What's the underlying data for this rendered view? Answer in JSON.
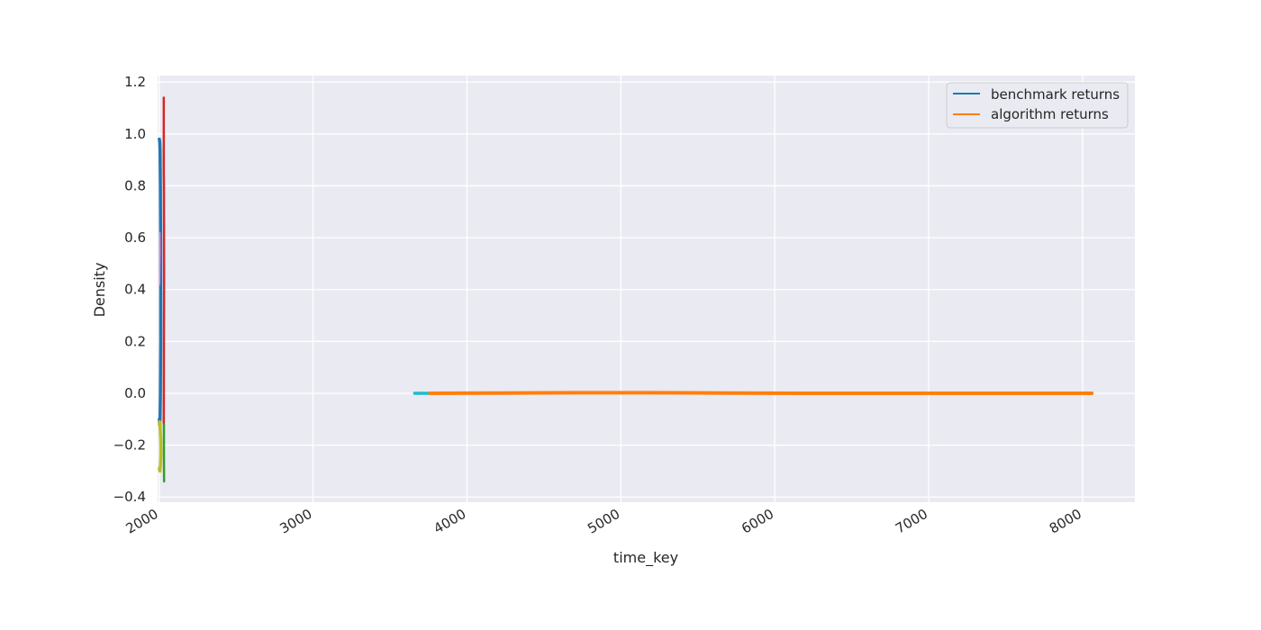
{
  "chart_data": {
    "type": "line",
    "title": "",
    "xlabel": "time_key",
    "ylabel": "Density",
    "xlim": [
      1990,
      8340
    ],
    "ylim": [
      -0.42,
      1.225
    ],
    "xticks": [
      2000,
      3000,
      4000,
      5000,
      6000,
      7000,
      8000
    ],
    "yticks": [
      -0.4,
      -0.2,
      0.0,
      0.2,
      0.4,
      0.6,
      0.8,
      1.0,
      1.2
    ],
    "xtick_labels": [
      "2000",
      "3000",
      "4000",
      "5000",
      "6000",
      "7000",
      "8000"
    ],
    "ytick_labels": [
      "−0.4",
      "−0.2",
      "0.0",
      "0.2",
      "0.4",
      "0.6",
      "0.8",
      "1.0",
      "1.2"
    ],
    "grid": true,
    "legend": {
      "location": "upper right",
      "entries": [
        {
          "label": "benchmark returns",
          "color": "#1f77b4"
        },
        {
          "label": "algorithm returns",
          "color": "#ff7f0e"
        }
      ]
    },
    "series": [
      {
        "name": "benchmark returns",
        "color": "#1f77b4",
        "width": 3.5,
        "x": [
          2001,
          2004,
          2006,
          2008,
          2010,
          2010,
          2008,
          2006,
          2003,
          2001
        ],
        "y": [
          0.98,
          0.97,
          0.94,
          0.8,
          0.55,
          0.2,
          0.0,
          -0.1,
          -0.12,
          -0.1
        ]
      },
      {
        "color": "#bcbd22",
        "width": 3.5,
        "x": [
          2001,
          2004,
          2007,
          2010,
          2011,
          2008,
          2005,
          2001
        ],
        "y": [
          -0.12,
          -0.11,
          -0.14,
          -0.18,
          -0.24,
          -0.28,
          -0.3,
          -0.29
        ]
      },
      {
        "color": "#e377c2",
        "width": 1.5,
        "x": [
          2003,
          2006,
          2005,
          2004
        ],
        "y": [
          0.42,
          0.55,
          0.62,
          0.5
        ]
      },
      {
        "color": "#d62728",
        "width": 2.5,
        "x": [
          2030,
          2030,
          2031,
          2032,
          2031,
          2030
        ],
        "y": [
          1.14,
          0.85,
          0.8,
          0.45,
          0.22,
          -0.12
        ]
      },
      {
        "color": "#2ca02c",
        "width": 2.5,
        "x": [
          2031,
          2031,
          2032
        ],
        "y": [
          -0.12,
          -0.25,
          -0.34
        ]
      },
      {
        "color": "#17becf",
        "width": 3.5,
        "x": [
          3660,
          3760
        ],
        "y": [
          0.0,
          0.0
        ]
      },
      {
        "name": "algorithm returns",
        "color": "#ff7f0e",
        "width": 4,
        "x": [
          3760,
          4200,
          4700,
          5200,
          5700,
          6200,
          6700,
          7200,
          7700,
          8060
        ],
        "y": [
          0.0,
          0.001,
          0.002,
          0.002,
          0.001,
          0.0,
          0.0,
          0.0,
          0.0,
          0.0
        ]
      }
    ]
  }
}
